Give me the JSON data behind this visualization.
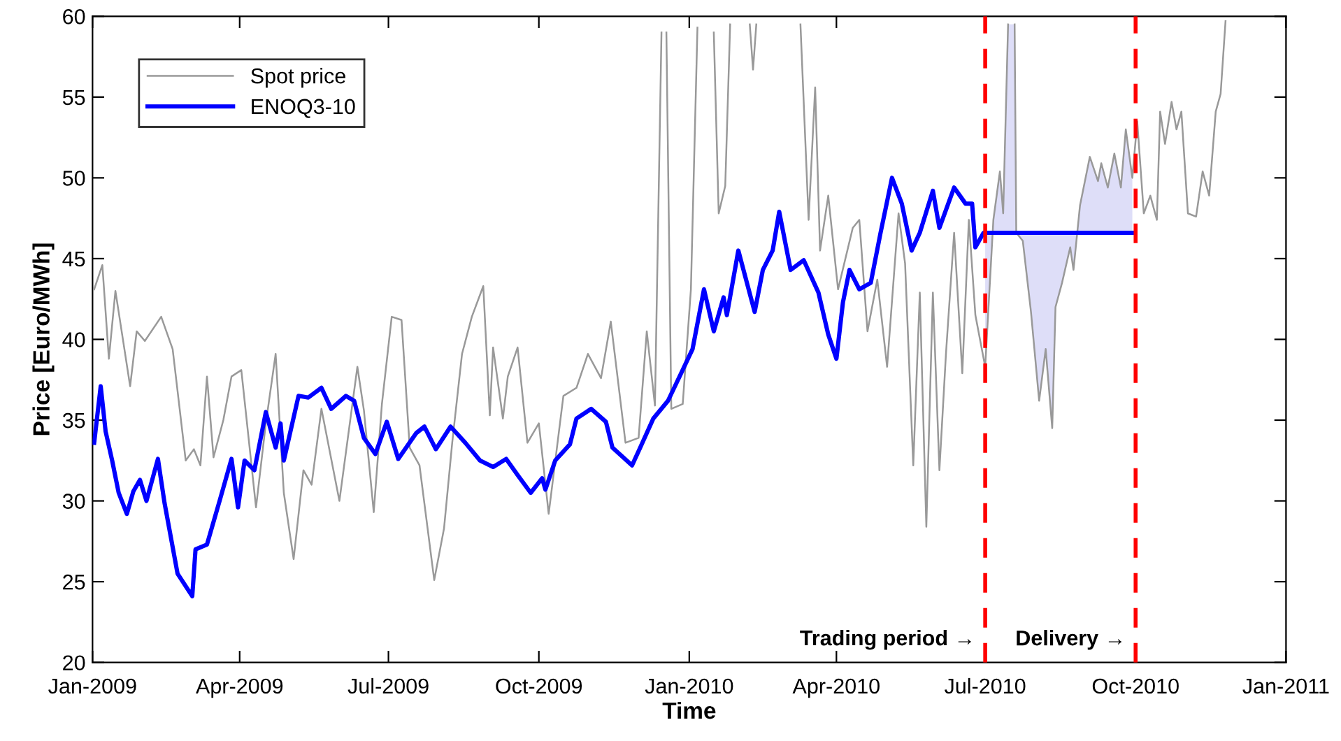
{
  "chart_data": {
    "type": "line",
    "xlabel": "Time",
    "ylabel": "Price [Euro/MWh]",
    "xlim": [
      "2009-01-01",
      "2011-01-01"
    ],
    "ylim": [
      20,
      60
    ],
    "xticks": [
      {
        "value": "2009-01-01",
        "label": "Jan-2009"
      },
      {
        "value": "2009-04-01",
        "label": "Apr-2009"
      },
      {
        "value": "2009-07-01",
        "label": "Jul-2009"
      },
      {
        "value": "2009-10-01",
        "label": "Oct-2009"
      },
      {
        "value": "2010-01-01",
        "label": "Jan-2010"
      },
      {
        "value": "2010-04-01",
        "label": "Apr-2010"
      },
      {
        "value": "2010-07-01",
        "label": "Jul-2010"
      },
      {
        "value": "2010-10-01",
        "label": "Oct-2010"
      },
      {
        "value": "2011-01-01",
        "label": "Jan-2011"
      }
    ],
    "yticks": [
      20,
      25,
      30,
      35,
      40,
      45,
      50,
      55,
      60
    ],
    "grid": false,
    "legend": "top left",
    "ref_lines": [
      {
        "axis": "x",
        "value": "2010-07-01",
        "color": "#ff0000",
        "line_style": "dashed"
      },
      {
        "axis": "x",
        "value": "2010-10-01",
        "color": "#ff0000",
        "line_style": "dashed"
      }
    ],
    "annotations": [
      "Trading period →",
      "Delivery →"
    ],
    "series": [
      {
        "type": "area",
        "color": "#dedef8",
        "x": [
          "2010-07-01",
          "2010-07-06",
          "2010-07-10",
          "2010-07-12",
          "2010-07-15",
          "2010-07-17",
          "2010-07-19",
          "2010-07-20",
          "2010-07-24",
          "2010-07-29",
          "2010-08-03",
          "2010-08-07",
          "2010-08-11",
          "2010-08-13",
          "2010-08-17",
          "2010-08-22",
          "2010-08-24",
          "2010-08-28",
          "2010-09-03",
          "2010-09-08",
          "2010-09-10",
          "2010-09-14",
          "2010-09-18",
          "2010-09-22",
          "2010-09-25",
          "2010-09-29"
        ],
        "values": [
          38.3,
          47.4,
          50.4,
          47.8,
          59.5,
          null,
          59.5,
          46.6,
          46.1,
          41.7,
          36.2,
          39.4,
          34.5,
          42.0,
          43.5,
          45.7,
          44.3,
          48.3,
          51.3,
          49.8,
          50.9,
          49.4,
          51.5,
          49.4,
          53.0,
          50.0
        ]
      },
      {
        "name": "Spot price",
        "color": "#999999",
        "x": [
          "2009-01-02",
          "2009-01-07",
          "2009-01-11",
          "2009-01-15",
          "2009-01-24",
          "2009-01-28",
          "2009-02-02",
          "2009-02-12",
          "2009-02-19",
          "2009-02-27",
          "2009-03-04",
          "2009-03-08",
          "2009-03-12",
          "2009-03-16",
          "2009-03-22",
          "2009-03-27",
          "2009-04-02",
          "2009-04-11",
          "2009-04-17",
          "2009-04-23",
          "2009-04-28",
          "2009-05-04",
          "2009-05-10",
          "2009-05-15",
          "2009-05-21",
          "2009-06-01",
          "2009-06-12",
          "2009-06-16",
          "2009-06-22",
          "2009-06-27",
          "2009-07-03",
          "2009-07-09",
          "2009-07-14",
          "2009-07-20",
          "2009-07-29",
          "2009-08-04",
          "2009-08-09",
          "2009-08-15",
          "2009-08-21",
          "2009-08-28",
          "2009-09-01",
          "2009-09-03",
          "2009-09-09",
          "2009-09-12",
          "2009-09-18",
          "2009-09-24",
          "2009-10-01",
          "2009-10-07",
          "2009-10-16",
          "2009-10-24",
          "2009-10-31",
          "2009-11-08",
          "2009-11-14",
          "2009-11-23",
          "2009-12-01",
          "2009-12-06",
          "2009-12-11",
          "2009-12-15",
          "2009-12-16",
          "2009-12-18",
          "2009-12-21",
          "2009-12-28",
          "2010-01-02",
          "2010-01-06",
          "2010-01-10",
          "2010-01-16",
          "2010-01-19",
          "2010-01-23",
          "2010-01-26",
          "2010-01-28",
          "2010-02-07",
          "2010-02-09",
          "2010-02-11",
          "2010-02-20",
          "2010-03-10",
          "2010-03-15",
          "2010-03-19",
          "2010-03-22",
          "2010-03-27",
          "2010-04-02",
          "2010-04-11",
          "2010-04-15",
          "2010-04-20",
          "2010-04-26",
          "2010-05-02",
          "2010-05-09",
          "2010-05-13",
          "2010-05-18",
          "2010-05-22",
          "2010-05-26",
          "2010-05-30",
          "2010-06-03",
          "2010-06-07",
          "2010-06-12",
          "2010-06-17",
          "2010-06-21",
          "2010-06-25",
          "2010-07-01",
          "2010-07-06",
          "2010-07-10",
          "2010-07-12",
          "2010-07-15",
          "2010-07-17",
          "2010-07-19",
          "2010-07-20",
          "2010-07-24",
          "2010-07-29",
          "2010-08-03",
          "2010-08-07",
          "2010-08-11",
          "2010-08-13",
          "2010-08-17",
          "2010-08-22",
          "2010-08-24",
          "2010-08-28",
          "2010-09-03",
          "2010-09-08",
          "2010-09-10",
          "2010-09-14",
          "2010-09-18",
          "2010-09-22",
          "2010-09-25",
          "2010-09-29",
          "2010-10-02",
          "2010-10-06",
          "2010-10-10",
          "2010-10-14",
          "2010-10-16",
          "2010-10-19",
          "2010-10-23",
          "2010-10-26",
          "2010-10-29",
          "2010-11-02",
          "2010-11-07",
          "2010-11-11",
          "2010-11-15",
          "2010-11-19",
          "2010-11-22",
          "2010-11-25"
        ],
        "values": [
          43.1,
          44.6,
          38.8,
          43.0,
          37.1,
          40.5,
          39.9,
          41.4,
          39.4,
          32.5,
          33.2,
          32.2,
          37.7,
          32.7,
          35.0,
          37.7,
          38.1,
          29.6,
          34.8,
          39.1,
          30.5,
          26.4,
          31.9,
          31.0,
          35.7,
          30.0,
          38.3,
          35.6,
          29.3,
          36.0,
          41.4,
          41.2,
          33.3,
          32.2,
          25.1,
          28.3,
          33.6,
          39.1,
          41.4,
          43.3,
          35.3,
          39.5,
          35.1,
          37.7,
          39.5,
          33.6,
          34.8,
          29.2,
          36.5,
          37.0,
          39.1,
          37.6,
          41.1,
          33.6,
          33.9,
          40.5,
          35.9,
          59.0,
          null,
          59.0,
          35.7,
          36.0,
          43.1,
          59.3,
          null,
          59.0,
          47.8,
          49.5,
          59.5,
          null,
          59.5,
          56.7,
          59.5,
          null,
          59.5,
          47.4,
          55.6,
          45.5,
          48.9,
          43.1,
          46.9,
          47.4,
          40.5,
          43.7,
          38.3,
          47.8,
          44.7,
          32.2,
          42.9,
          28.4,
          42.9,
          31.9,
          39.1,
          46.6,
          37.9,
          47.4,
          41.5,
          38.3,
          47.4,
          50.4,
          47.8,
          59.5,
          null,
          59.5,
          46.6,
          46.1,
          41.7,
          36.2,
          39.4,
          34.5,
          42.0,
          43.5,
          45.7,
          44.3,
          48.3,
          51.3,
          49.8,
          50.9,
          49.4,
          51.5,
          49.4,
          53.0,
          50.0,
          53.5,
          47.8,
          48.9,
          47.4,
          54.1,
          52.1,
          54.7,
          53.0,
          54.1,
          47.8,
          47.6,
          50.4,
          48.9,
          54.1,
          55.2,
          59.7
        ]
      },
      {
        "name": "ENOQ3-10",
        "color": "#0000ff",
        "x": [
          "2009-01-02",
          "2009-01-06",
          "2009-01-09",
          "2009-01-13",
          "2009-01-17",
          "2009-01-22",
          "2009-01-26",
          "2009-01-30",
          "2009-02-03",
          "2009-02-10",
          "2009-02-14",
          "2009-02-22",
          "2009-03-03",
          "2009-03-05",
          "2009-03-12",
          "2009-03-20",
          "2009-03-27",
          "2009-03-31",
          "2009-04-04",
          "2009-04-10",
          "2009-04-17",
          "2009-04-23",
          "2009-04-26",
          "2009-04-28",
          "2009-05-07",
          "2009-05-13",
          "2009-05-21",
          "2009-05-27",
          "2009-06-05",
          "2009-06-10",
          "2009-06-16",
          "2009-06-23",
          "2009-06-30",
          "2009-07-07",
          "2009-07-18",
          "2009-07-23",
          "2009-07-30",
          "2009-08-08",
          "2009-08-17",
          "2009-08-26",
          "2009-09-03",
          "2009-09-11",
          "2009-09-18",
          "2009-09-26",
          "2009-10-03",
          "2009-10-05",
          "2009-10-11",
          "2009-10-20",
          "2009-10-24",
          "2009-11-02",
          "2009-11-11",
          "2009-11-15",
          "2009-11-27",
          "2009-12-02",
          "2009-12-10",
          "2009-12-19",
          "2009-12-27",
          "2010-01-03",
          "2010-01-10",
          "2010-01-16",
          "2010-01-22",
          "2010-01-24",
          "2010-01-31",
          "2010-02-10",
          "2010-02-15",
          "2010-02-21",
          "2010-02-25",
          "2010-03-04",
          "2010-03-12",
          "2010-03-21",
          "2010-03-27",
          "2010-04-01",
          "2010-04-05",
          "2010-04-09",
          "2010-04-15",
          "2010-04-22",
          "2010-04-28",
          "2010-05-05",
          "2010-05-11",
          "2010-05-17",
          "2010-05-22",
          "2010-05-30",
          "2010-06-03",
          "2010-06-12",
          "2010-06-19",
          "2010-06-23",
          "2010-06-25",
          "2010-06-30",
          "2010-07-01",
          "2010-09-30"
        ],
        "values": [
          33.6,
          37.1,
          34.3,
          32.5,
          30.5,
          29.2,
          30.6,
          31.3,
          30.0,
          32.6,
          29.9,
          25.5,
          24.1,
          27.0,
          27.3,
          30.1,
          32.6,
          29.6,
          32.5,
          31.9,
          35.5,
          33.3,
          34.8,
          32.5,
          36.5,
          36.4,
          37.0,
          35.7,
          36.5,
          36.2,
          33.9,
          32.9,
          34.9,
          32.6,
          34.2,
          34.6,
          33.2,
          34.6,
          33.6,
          32.5,
          32.1,
          32.6,
          31.6,
          30.5,
          31.4,
          30.7,
          32.5,
          33.5,
          35.1,
          35.7,
          34.9,
          33.3,
          32.2,
          33.3,
          35.1,
          36.2,
          37.9,
          39.4,
          43.1,
          40.5,
          42.6,
          41.5,
          45.5,
          41.7,
          44.3,
          45.5,
          47.9,
          44.3,
          44.9,
          42.9,
          40.3,
          38.8,
          42.3,
          44.3,
          43.1,
          43.5,
          46.6,
          50.0,
          48.4,
          45.5,
          46.6,
          49.2,
          46.9,
          49.4,
          48.4,
          48.4,
          45.7,
          46.6,
          46.6,
          46.6
        ]
      }
    ]
  }
}
